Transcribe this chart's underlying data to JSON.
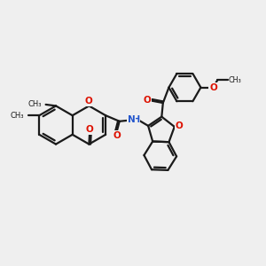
{
  "bg_color": "#efefef",
  "bond_color": "#1a1a1a",
  "oxygen_color": "#dd1100",
  "nitrogen_color": "#2255cc",
  "line_width": 1.6,
  "figsize": [
    3.0,
    3.0
  ],
  "dpi": 100,
  "xlim": [
    0,
    10
  ],
  "ylim": [
    1,
    9
  ]
}
